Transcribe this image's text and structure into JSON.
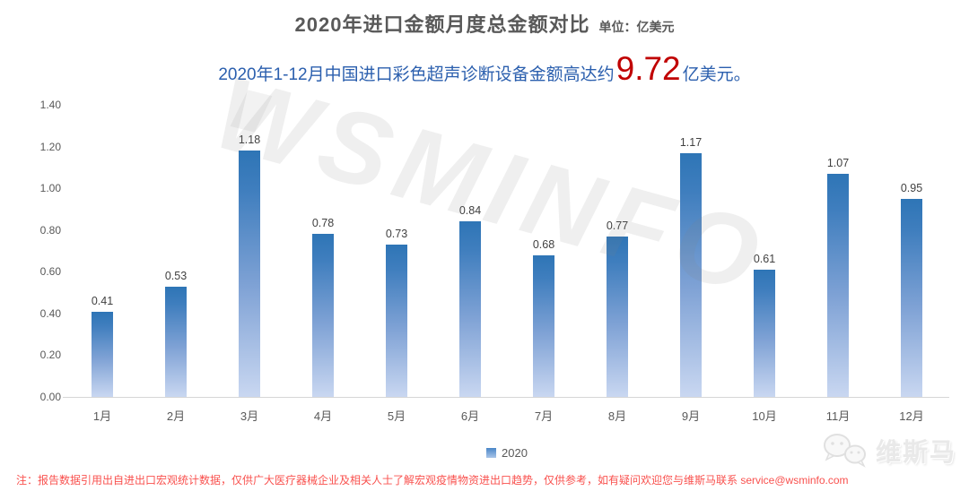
{
  "header": {
    "title": "2020年进口金额月度总金额对比",
    "unit_label": "单位：亿美元"
  },
  "subtitle": {
    "prefix": "2020年1-12月中国进口彩色超声诊断设备金额高达约",
    "highlight": "9.72",
    "suffix": "亿美元。"
  },
  "chart_data": {
    "type": "bar",
    "title": "2020年进口金额月度总金额对比",
    "unit": "亿美元",
    "categories": [
      "1月",
      "2月",
      "3月",
      "4月",
      "5月",
      "6月",
      "7月",
      "8月",
      "9月",
      "10月",
      "11月",
      "12月"
    ],
    "series": [
      {
        "name": "2020",
        "values": [
          0.41,
          0.53,
          1.18,
          0.78,
          0.73,
          0.84,
          0.68,
          0.77,
          1.17,
          0.61,
          1.07,
          0.95
        ]
      }
    ],
    "ylim": [
      0,
      1.4
    ],
    "yticks": [
      "0.00",
      "0.20",
      "0.40",
      "0.60",
      "0.80",
      "1.00",
      "1.20",
      "1.40"
    ],
    "grid": false,
    "legend_position": "bottom",
    "annotation_total": "9.72"
  },
  "legend": {
    "label": "2020"
  },
  "watermark": {
    "text": "WSMINFO"
  },
  "footer": {
    "note": "注：报告数据引用出自进出口宏观统计数据，仅供广大医疗器械企业及相关人士了解宏观疫情物资进出口趋势，仅供参考，如有疑问欢迎您与维斯马联系  service@wsminfo.com",
    "brand": "维斯马"
  },
  "colors": {
    "title_gray": "#595959",
    "subtitle_blue": "#2B5FAE",
    "highlight_red": "#C00000",
    "note_red": "#F9514E",
    "bar_top": "#2E75B6",
    "bar_bottom": "#C9D7F1",
    "axis_line": "#D6D6D6"
  }
}
